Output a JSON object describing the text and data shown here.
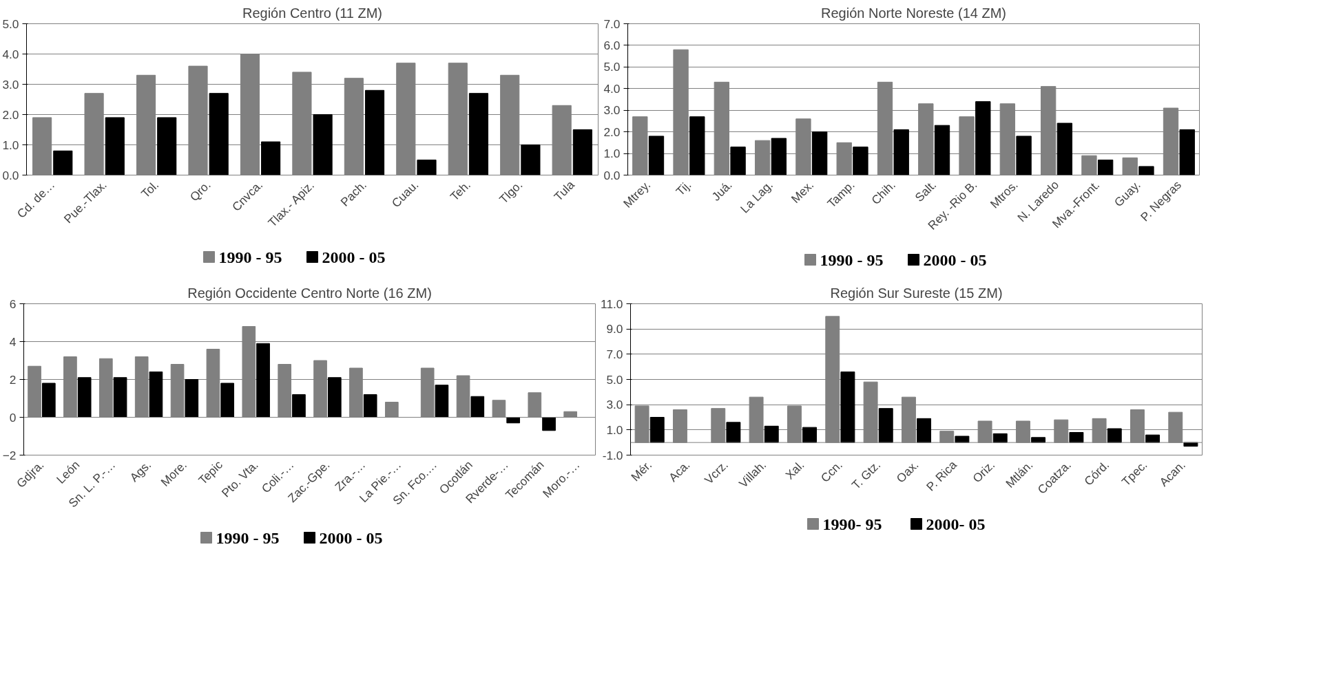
{
  "chart_data": [
    {
      "type": "bar",
      "title": "Región Centro (11 ZM)",
      "categories": [
        "Cd. de…",
        "Pue.-Tlax.",
        "Tol.",
        "Qro.",
        "Cnvca.",
        "Tlax.- Apiz.",
        "Pach.",
        "Cuau.",
        "Teh.",
        "Tlgo.",
        "Tula"
      ],
      "series": [
        {
          "name": "1990 - 95",
          "color": "#808080",
          "values": [
            1.9,
            2.7,
            3.3,
            3.6,
            4.0,
            3.4,
            3.2,
            3.7,
            3.7,
            3.3,
            2.3
          ]
        },
        {
          "name": "2000 - 05",
          "color": "#000000",
          "values": [
            0.8,
            1.9,
            1.9,
            2.7,
            1.1,
            2.0,
            2.8,
            0.5,
            2.7,
            1.0,
            1.5
          ]
        }
      ],
      "ylim": [
        0,
        5
      ],
      "yticks": [
        {
          "value": 0,
          "label": "0.0"
        },
        {
          "value": 1,
          "label": "1.0"
        },
        {
          "value": 2,
          "label": "2.0"
        },
        {
          "value": 3,
          "label": "3.0"
        },
        {
          "value": 4,
          "label": "4.0"
        },
        {
          "value": 5,
          "label": "5.0"
        }
      ],
      "grid": "y",
      "legend": "bottom"
    },
    {
      "type": "bar",
      "title": "Región Norte Noreste (14 ZM)",
      "categories": [
        "Mtrey.",
        "Tij.",
        "Juá.",
        "La Lag.",
        "Mex.",
        "Tamp.",
        "Chih.",
        "Salt.",
        "Rey. -Rio B.",
        "Mtros.",
        "N. Laredo",
        "Mva.-Front.",
        "Guay.",
        "P. Negras"
      ],
      "series": [
        {
          "name": "1990 - 95",
          "color": "#808080",
          "values": [
            2.7,
            5.8,
            4.3,
            1.6,
            2.6,
            1.5,
            4.3,
            3.3,
            2.7,
            3.3,
            4.1,
            0.9,
            0.8,
            3.1
          ]
        },
        {
          "name": "2000 - 05",
          "color": "#000000",
          "values": [
            1.8,
            2.7,
            1.3,
            1.7,
            2.0,
            1.3,
            2.1,
            2.3,
            3.4,
            1.8,
            2.4,
            0.7,
            0.4,
            2.1
          ]
        }
      ],
      "ylim": [
        0,
        7
      ],
      "yticks": [
        {
          "value": 0,
          "label": "0.0"
        },
        {
          "value": 1,
          "label": "1.0"
        },
        {
          "value": 2,
          "label": "2.0"
        },
        {
          "value": 3,
          "label": "3.0"
        },
        {
          "value": 4,
          "label": "4.0"
        },
        {
          "value": 5,
          "label": "5.0"
        },
        {
          "value": 6,
          "label": "6.0"
        },
        {
          "value": 7,
          "label": "7.0"
        }
      ],
      "grid": "y",
      "legend": "bottom"
    },
    {
      "type": "bar",
      "title": "Región Occidente Centro Norte (16 ZM)",
      "categories": [
        "Gdjra.",
        "León",
        "Sn. L. P.-…",
        "Ags.",
        "More.",
        "Tepic",
        "Pto. Vta.",
        "Coli.-…",
        "Zac.-Gpe.",
        "Zra.-…",
        "La Pie.-…",
        "Sn. Fco.…",
        "Ocotlán",
        "Rverde-…",
        "Tecomán",
        "Moro.-…"
      ],
      "series": [
        {
          "name": "1990 - 95",
          "color": "#808080",
          "values": [
            2.7,
            3.2,
            3.1,
            3.2,
            2.8,
            3.6,
            4.8,
            2.8,
            3.0,
            2.6,
            0.8,
            2.6,
            2.2,
            0.9,
            1.3,
            0.3
          ]
        },
        {
          "name": "2000 - 05",
          "color": "#000000",
          "values": [
            1.8,
            2.1,
            2.1,
            2.4,
            2.0,
            1.8,
            3.9,
            1.2,
            2.1,
            1.2,
            null,
            1.7,
            1.1,
            -0.3,
            -0.7,
            null
          ]
        }
      ],
      "ylim": [
        -2,
        6
      ],
      "yticks": [
        -2,
        0,
        2,
        4,
        6
      ],
      "grid": "y",
      "legend": "bottom"
    },
    {
      "type": "bar",
      "title": "Región Sur Sureste (15 ZM)",
      "categories": [
        "Mér.",
        "Aca.",
        "Vcrz.",
        "Villah.",
        "Xal.",
        "Ccn.",
        "T. Gtz.",
        "Oax.",
        "P. Rica",
        "Oriz.",
        "Mtlán.",
        "Coatza.",
        "Córd.",
        "Tpec.",
        "Acan."
      ],
      "series": [
        {
          "name": "1990- 95",
          "color": "#808080",
          "values": [
            2.9,
            2.6,
            2.7,
            3.6,
            2.9,
            10.0,
            4.8,
            3.6,
            0.9,
            1.7,
            1.7,
            1.8,
            1.9,
            2.6,
            2.4
          ]
        },
        {
          "name": "2000- 05",
          "color": "#000000",
          "values": [
            2.0,
            null,
            1.6,
            1.3,
            1.2,
            5.6,
            2.7,
            1.9,
            0.5,
            0.7,
            0.4,
            0.8,
            1.1,
            0.6,
            -0.3
          ]
        }
      ],
      "ylim": [
        -1,
        11
      ],
      "yticks": [
        {
          "value": -1,
          "label": "-1.0"
        },
        {
          "value": 1,
          "label": "1.0"
        },
        {
          "value": 3,
          "label": "3.0"
        },
        {
          "value": 5,
          "label": "5.0"
        },
        {
          "value": 7,
          "label": "7.0"
        },
        {
          "value": 9,
          "label": "9.0"
        },
        {
          "value": 11,
          "label": "11.0"
        }
      ],
      "grid": "y",
      "legend": "bottom"
    }
  ]
}
